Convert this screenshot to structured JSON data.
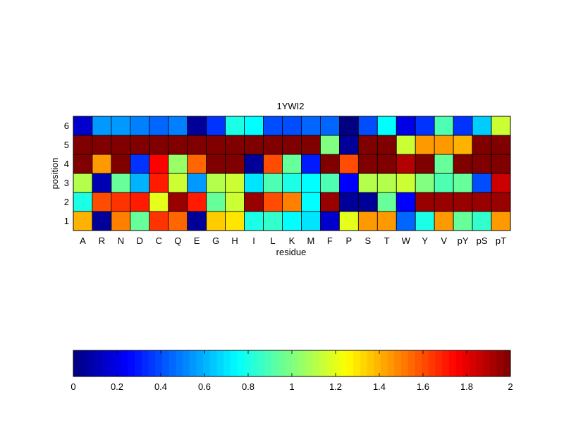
{
  "chart_data": {
    "type": "heatmap",
    "title": "1YWI2",
    "xlabel": "residue",
    "ylabel": "position",
    "x_categories": [
      "A",
      "R",
      "N",
      "D",
      "C",
      "Q",
      "E",
      "G",
      "H",
      "I",
      "L",
      "K",
      "M",
      "F",
      "P",
      "S",
      "T",
      "W",
      "Y",
      "V",
      "pY",
      "pS",
      "pT"
    ],
    "y_categories": [
      "1",
      "2",
      "3",
      "4",
      "5",
      "6"
    ],
    "values": [
      [
        1.4,
        0.05,
        1.5,
        0.95,
        1.65,
        1.55,
        0.05,
        1.35,
        1.3,
        0.8,
        0.85,
        0.75,
        0.7,
        0.15,
        1.2,
        1.45,
        1.45,
        0.45,
        0.8,
        1.45,
        0.95,
        0.85,
        1.45
      ],
      [
        0.8,
        1.6,
        1.65,
        1.7,
        1.2,
        1.95,
        1.7,
        0.95,
        1.15,
        1.95,
        1.6,
        1.5,
        0.75,
        1.95,
        0.05,
        0.05,
        0.95,
        0.25,
        1.95,
        1.95,
        1.95,
        1.95,
        1.95
      ],
      [
        1.1,
        0.1,
        0.95,
        0.6,
        1.7,
        1.15,
        0.55,
        1.1,
        1.15,
        0.7,
        0.9,
        0.8,
        0.75,
        0.9,
        0.25,
        1.1,
        1.1,
        1.15,
        1.0,
        0.9,
        0.95,
        0.4,
        1.85
      ],
      [
        2.0,
        1.45,
        2.0,
        0.35,
        1.75,
        1.05,
        1.55,
        2.0,
        2.0,
        0.05,
        1.6,
        0.95,
        0.3,
        2.0,
        1.6,
        2.0,
        2.0,
        1.9,
        2.0,
        0.95,
        2.0,
        2.0,
        2.0
      ],
      [
        2.0,
        2.0,
        2.0,
        2.0,
        2.0,
        2.0,
        2.0,
        2.0,
        2.0,
        2.0,
        2.0,
        2.0,
        2.0,
        1.0,
        0.05,
        2.0,
        2.0,
        1.15,
        1.45,
        1.45,
        1.4,
        2.0,
        2.0
      ],
      [
        0.15,
        0.55,
        0.55,
        0.5,
        0.45,
        0.5,
        0.05,
        0.35,
        0.8,
        0.75,
        0.4,
        0.4,
        0.45,
        0.45,
        0.0,
        0.4,
        0.75,
        0.2,
        0.35,
        0.9,
        0.35,
        0.65,
        1.15
      ]
    ],
    "colormap": "jet",
    "zlim": [
      0,
      2
    ],
    "colorbar": {
      "location": "bottom",
      "ticks": [
        "0",
        "0.2",
        "0.4",
        "0.6",
        "0.8",
        "1",
        "1.2",
        "1.4",
        "1.6",
        "1.8",
        "2"
      ]
    }
  }
}
